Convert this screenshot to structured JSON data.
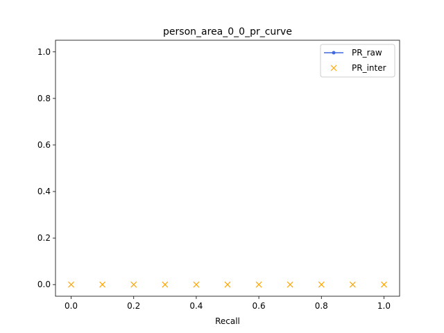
{
  "chart_data": {
    "type": "line",
    "title": "person_area_0_0_pr_curve",
    "xlabel": "Recall",
    "ylabel": "",
    "xlim": [
      -0.05,
      1.05
    ],
    "ylim": [
      -0.05,
      1.05
    ],
    "xticks": [
      0.0,
      0.2,
      0.4,
      0.6,
      0.8,
      1.0
    ],
    "xtick_labels": [
      "0.0",
      "0.2",
      "0.4",
      "0.6",
      "0.8",
      "1.0"
    ],
    "yticks": [
      0.0,
      0.2,
      0.4,
      0.6,
      0.8,
      1.0
    ],
    "ytick_labels": [
      "0.0",
      "0.2",
      "0.4",
      "0.6",
      "0.8",
      "1.0"
    ],
    "grid": false,
    "legend_position": "top-right",
    "series": [
      {
        "name": "PR_raw",
        "style": "line-dot",
        "color": "#4169e1",
        "x": [],
        "y": []
      },
      {
        "name": "PR_inter",
        "style": "x-marker",
        "color": "#ffa500",
        "x": [
          0.0,
          0.1,
          0.2,
          0.3,
          0.4,
          0.5,
          0.6,
          0.7,
          0.8,
          0.9,
          1.0
        ],
        "y": [
          0.0,
          0.0,
          0.0,
          0.0,
          0.0,
          0.0,
          0.0,
          0.0,
          0.0,
          0.0,
          0.0
        ]
      }
    ]
  }
}
